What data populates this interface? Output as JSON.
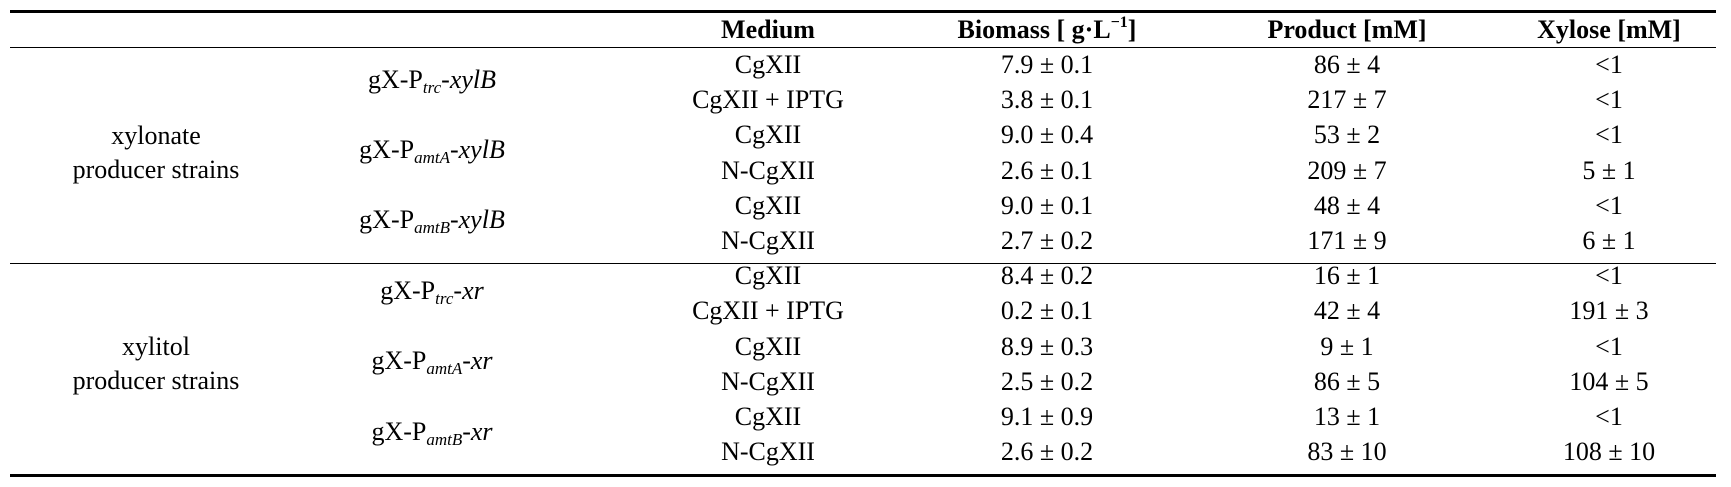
{
  "header": {
    "medium": "Medium",
    "biomass": "Biomass [ g·L",
    "biomass_sup": "−1",
    "biomass_close": "]",
    "product": "Product [mM]",
    "xylose": "Xylose [mM]"
  },
  "groups": [
    {
      "name_line1": "xylonate",
      "name_line2": "producer strains",
      "strains": [
        {
          "prefix": "gX-P",
          "promoter": "trc",
          "gene": "-xylB",
          "rows": [
            {
              "medium": "CgXII",
              "biomass": "7.9 ± 0.1",
              "product": "86 ± 4",
              "xylose": "<1"
            },
            {
              "medium": "CgXII + IPTG",
              "biomass": "3.8 ± 0.1",
              "product": "217 ± 7",
              "xylose": "<1"
            }
          ]
        },
        {
          "prefix": "gX-P",
          "promoter": "amtA",
          "gene": "-xylB",
          "rows": [
            {
              "medium": "CgXII",
              "biomass": "9.0 ± 0.4",
              "product": "53 ± 2",
              "xylose": "<1"
            },
            {
              "medium": "N-CgXII",
              "biomass": "2.6 ± 0.1",
              "product": "209 ± 7",
              "xylose": "5 ± 1"
            }
          ]
        },
        {
          "prefix": "gX-P",
          "promoter": "amtB",
          "gene": "-xylB",
          "rows": [
            {
              "medium": "CgXII",
              "biomass": "9.0 ± 0.1",
              "product": "48 ± 4",
              "xylose": "<1"
            },
            {
              "medium": "N-CgXII",
              "biomass": "2.7 ± 0.2",
              "product": "171 ± 9",
              "xylose": "6 ± 1"
            }
          ]
        }
      ]
    },
    {
      "name_line1": "xylitol",
      "name_line2": "producer strains",
      "strains": [
        {
          "prefix": "gX-P",
          "promoter": "trc",
          "gene": "-xr",
          "rows": [
            {
              "medium": "CgXII",
              "biomass": "8.4 ± 0.2",
              "product": "16 ± 1",
              "xylose": "<1"
            },
            {
              "medium": "CgXII + IPTG",
              "biomass": "0.2 ± 0.1",
              "product": "42 ± 4",
              "xylose": "191 ± 3"
            }
          ]
        },
        {
          "prefix": "gX-P",
          "promoter": "amtA",
          "gene": "-xr",
          "rows": [
            {
              "medium": "CgXII",
              "biomass": "8.9 ± 0.3",
              "product": "9 ± 1",
              "xylose": "<1"
            },
            {
              "medium": "N-CgXII",
              "biomass": "2.5 ± 0.2",
              "product": "86 ± 5",
              "xylose": "104 ± 5"
            }
          ]
        },
        {
          "prefix": "gX-P",
          "promoter": "amtB",
          "gene": "-xr",
          "rows": [
            {
              "medium": "CgXII",
              "biomass": "9.1 ± 0.9",
              "product": "13 ± 1",
              "xylose": "<1"
            },
            {
              "medium": "N-CgXII",
              "biomass": "2.6 ± 0.2",
              "product": "83 ± 10",
              "xylose": "108 ± 10"
            }
          ]
        }
      ]
    }
  ]
}
